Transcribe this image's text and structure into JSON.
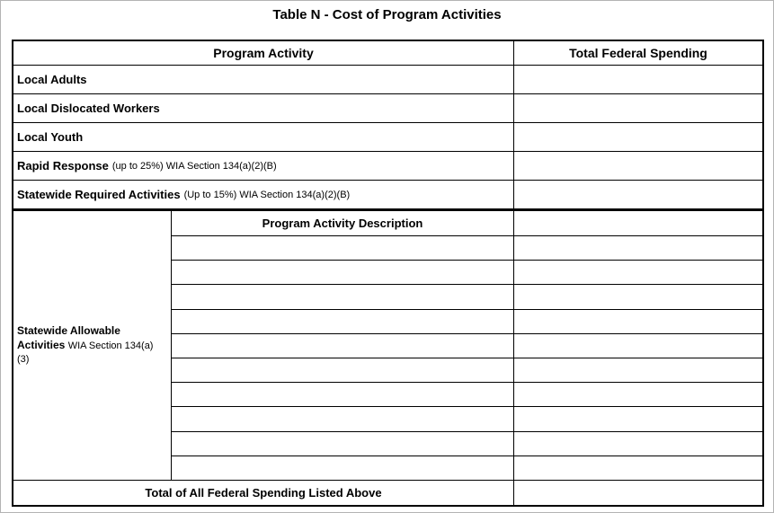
{
  "title": "Table N - Cost of Program Activities",
  "table": {
    "header": {
      "program_activity": "Program Activity",
      "total_federal_spending": "Total Federal Spending"
    },
    "rows": [
      {
        "label": "Local Adults",
        "note": "",
        "value": ""
      },
      {
        "label": "Local Dislocated Workers",
        "note": "",
        "value": ""
      },
      {
        "label": "Local Youth",
        "note": "",
        "value": ""
      },
      {
        "label": "Rapid Response",
        "note": "(up to 25%) WIA Section 134(a)(2)(B)",
        "value": ""
      },
      {
        "label": "Statewide Required Activities",
        "note": "(Up to 15%) WIA Section 134(a)(2)(B)",
        "value": ""
      }
    ],
    "statewide_allowable": {
      "label": "Statewide Allowable Activities",
      "note": "WIA Section 134(a)(3)",
      "description_header": "Program Activity Description",
      "empty_row_count": 10
    },
    "footer": {
      "label": "Total of All Federal Spending Listed Above",
      "value": ""
    }
  }
}
